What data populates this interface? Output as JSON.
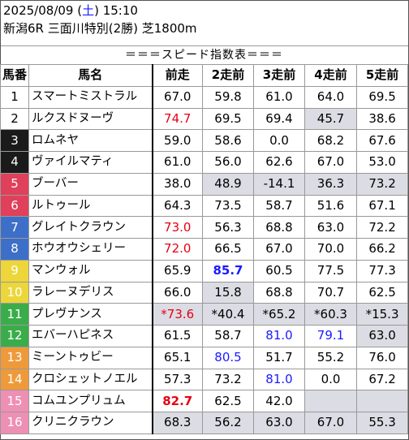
{
  "header": {
    "date_prefix": "2025/08/09 (",
    "weekday": "土",
    "date_suffix": ") 15:10",
    "race": "新潟6R 三面川特別(2勝) 芝1800m"
  },
  "banner": "＝＝＝スピード指数表＝＝＝",
  "columns": [
    "馬番",
    "馬名",
    "前走",
    "2走前",
    "3走前",
    "4走前",
    "5走前"
  ],
  "rows": [
    {
      "no": "1",
      "name": "スマートミストラル",
      "v": [
        "67.0",
        "59.8",
        "61.0",
        "64.0",
        "69.5"
      ]
    },
    {
      "no": "2",
      "name": "ルクスドヌーヴ",
      "v": [
        "74.7",
        "69.5",
        "69.4",
        "45.7",
        "38.6"
      ]
    },
    {
      "no": "3",
      "name": "ロムネヤ",
      "v": [
        "59.0",
        "58.6",
        "0.0",
        "68.2",
        "67.6"
      ]
    },
    {
      "no": "4",
      "name": "ヴァイルマティ",
      "v": [
        "61.0",
        "56.0",
        "62.6",
        "67.0",
        "53.0"
      ]
    },
    {
      "no": "5",
      "name": "ブーバー",
      "v": [
        "38.0",
        "48.9",
        "-14.1",
        "36.3",
        "73.2"
      ]
    },
    {
      "no": "6",
      "name": "ルトゥール",
      "v": [
        "64.3",
        "73.5",
        "58.7",
        "51.6",
        "67.1"
      ]
    },
    {
      "no": "7",
      "name": "グレイトクラウン",
      "v": [
        "73.0",
        "56.3",
        "68.8",
        "63.0",
        "72.2"
      ]
    },
    {
      "no": "8",
      "name": "ホウオウシェリー",
      "v": [
        "72.0",
        "66.5",
        "67.0",
        "70.0",
        "66.2"
      ]
    },
    {
      "no": "9",
      "name": "マンウォル",
      "v": [
        "65.9",
        "85.7",
        "60.5",
        "77.5",
        "77.3"
      ]
    },
    {
      "no": "10",
      "name": "ラレーヌデリス",
      "v": [
        "66.0",
        "15.8",
        "68.8",
        "70.7",
        "62.5"
      ]
    },
    {
      "no": "11",
      "name": "プレヴナンス",
      "v": [
        "*73.6",
        "*40.4",
        "*65.2",
        "*60.3",
        "*15.3"
      ]
    },
    {
      "no": "12",
      "name": "エバーハピネス",
      "v": [
        "61.5",
        "58.7",
        "81.0",
        "79.1",
        "63.0"
      ]
    },
    {
      "no": "13",
      "name": "ミーントゥビー",
      "v": [
        "65.1",
        "80.5",
        "51.7",
        "55.2",
        "76.0"
      ]
    },
    {
      "no": "14",
      "name": "クロシェットノエル",
      "v": [
        "57.3",
        "73.2",
        "81.0",
        "0.0",
        "67.2"
      ]
    },
    {
      "no": "15",
      "name": "コムユンプリュム",
      "v": [
        "82.7",
        "62.5",
        "42.0",
        "",
        ""
      ]
    },
    {
      "no": "16",
      "name": "クリニクラウン",
      "v": [
        "68.3",
        "56.2",
        "63.0",
        "67.0",
        "55.3"
      ]
    }
  ],
  "styles": {
    "red": [
      [
        1,
        0
      ],
      [
        6,
        0
      ],
      [
        7,
        0
      ],
      [
        10,
        0
      ],
      [
        14,
        0
      ]
    ],
    "blue": [
      [
        8,
        1
      ],
      [
        11,
        2
      ],
      [
        11,
        3
      ],
      [
        12,
        1
      ],
      [
        13,
        2
      ]
    ],
    "bold": [
      [
        8,
        1
      ],
      [
        14,
        0
      ]
    ],
    "shade": [
      [
        1,
        3
      ],
      [
        4,
        1
      ],
      [
        4,
        2
      ],
      [
        4,
        3
      ],
      [
        4,
        4
      ],
      [
        9,
        1
      ],
      [
        10,
        0
      ],
      [
        10,
        1
      ],
      [
        10,
        2
      ],
      [
        10,
        3
      ],
      [
        10,
        4
      ],
      [
        11,
        4
      ],
      [
        14,
        3
      ],
      [
        14,
        4
      ],
      [
        15,
        0
      ],
      [
        15,
        1
      ],
      [
        15,
        2
      ],
      [
        15,
        3
      ],
      [
        15,
        4
      ]
    ]
  }
}
